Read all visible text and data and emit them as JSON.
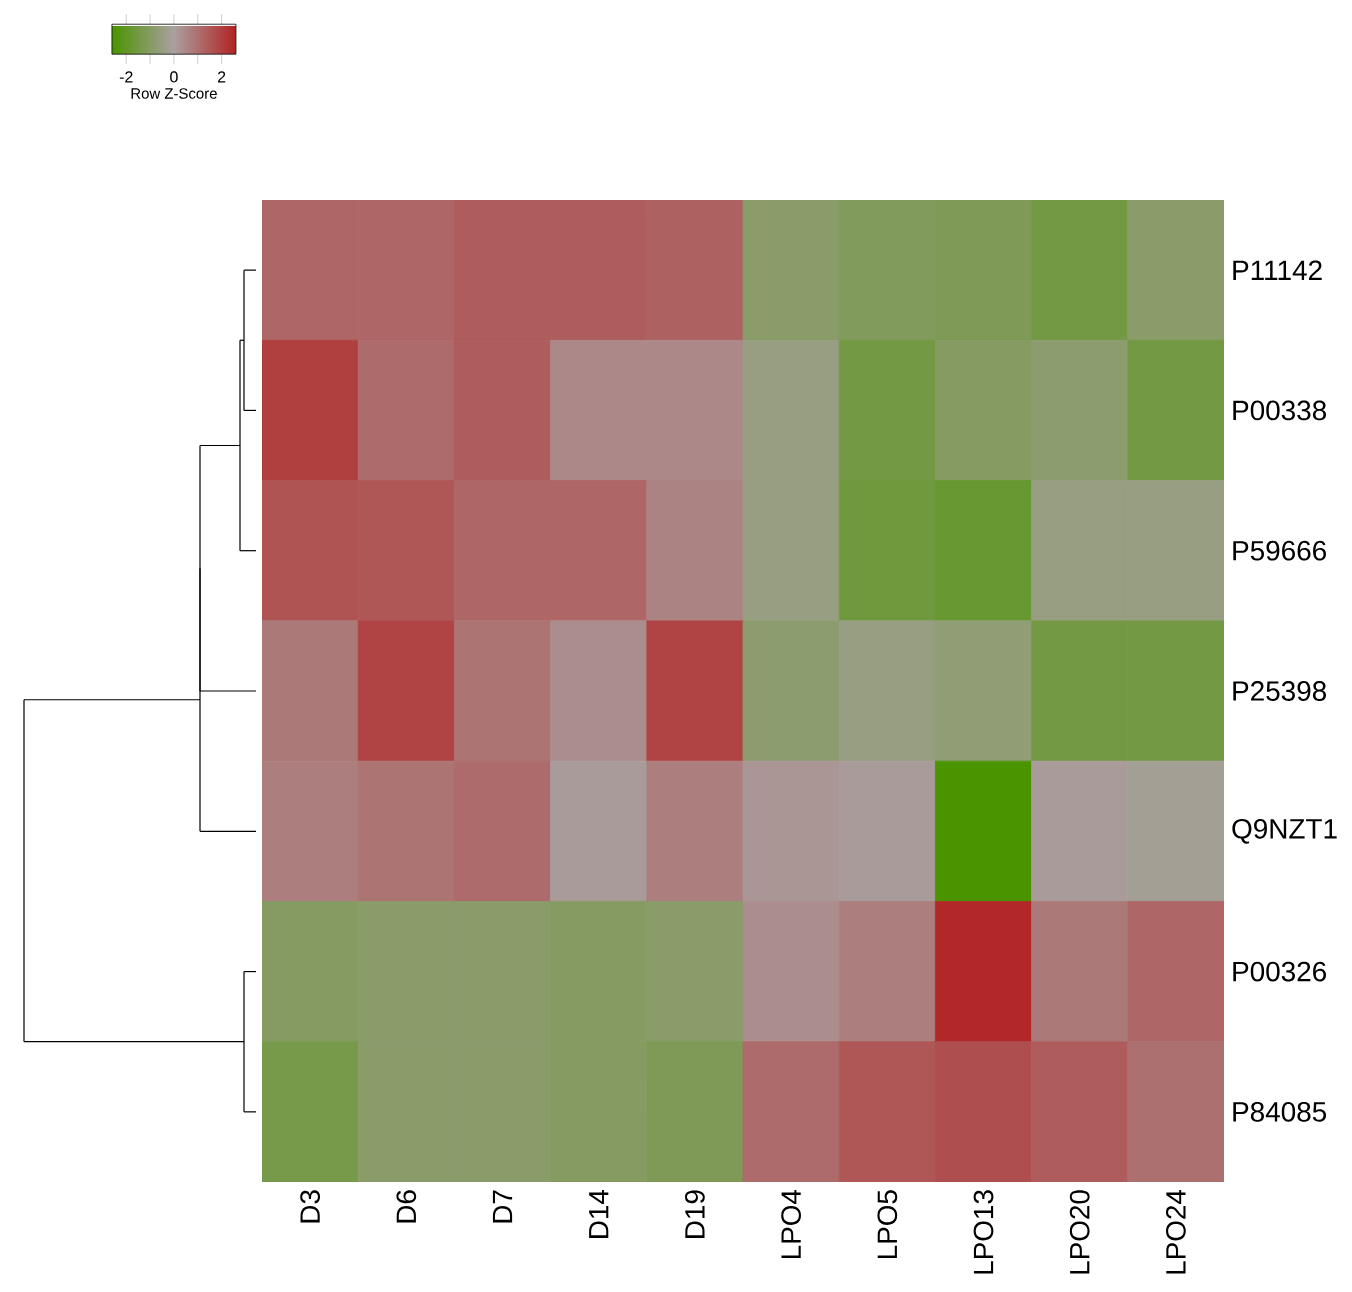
{
  "chart_data": {
    "type": "heatmap",
    "categories": [
      "D3",
      "D6",
      "D7",
      "D14",
      "D19",
      "LPO4",
      "LPO5",
      "LPO13",
      "LPO20",
      "LPO24"
    ],
    "y_categories": [
      "P11142",
      "P00338",
      "P59666",
      "P25398",
      "Q9NZT1",
      "P00326",
      "P84085"
    ],
    "cells": [
      [
        1.2,
        1.2,
        1.4,
        1.4,
        1.3,
        -0.9,
        -1.1,
        -1.2,
        -1.5,
        -0.9
      ],
      [
        2.0,
        1.1,
        1.4,
        0.5,
        0.5,
        -0.5,
        -1.5,
        -1.0,
        -0.8,
        -1.5
      ],
      [
        1.6,
        1.5,
        1.2,
        1.2,
        0.6,
        -0.5,
        -1.6,
        -1.8,
        -0.5,
        -0.5
      ],
      [
        0.8,
        1.9,
        0.9,
        0.4,
        1.9,
        -0.8,
        -0.5,
        -0.7,
        -1.5,
        -1.5
      ],
      [
        0.7,
        0.9,
        1.1,
        0.1,
        0.7,
        0.2,
        0.1,
        -2.6,
        0.1,
        -0.2
      ],
      [
        -1.0,
        -0.9,
        -0.9,
        -1.0,
        -0.9,
        0.4,
        0.7,
        2.5,
        0.8,
        1.2
      ],
      [
        -1.4,
        -0.9,
        -0.9,
        -1.0,
        -1.2,
        1.1,
        1.5,
        1.7,
        1.4,
        1.0
      ]
    ],
    "clim": [
      -2.6,
      2.6
    ],
    "cticks": [
      -2,
      {
        "value": -1,
        "label": null
      },
      0,
      {
        "value": 1,
        "label": null
      },
      2
    ],
    "clabel": "Row Z-Score"
  }
}
